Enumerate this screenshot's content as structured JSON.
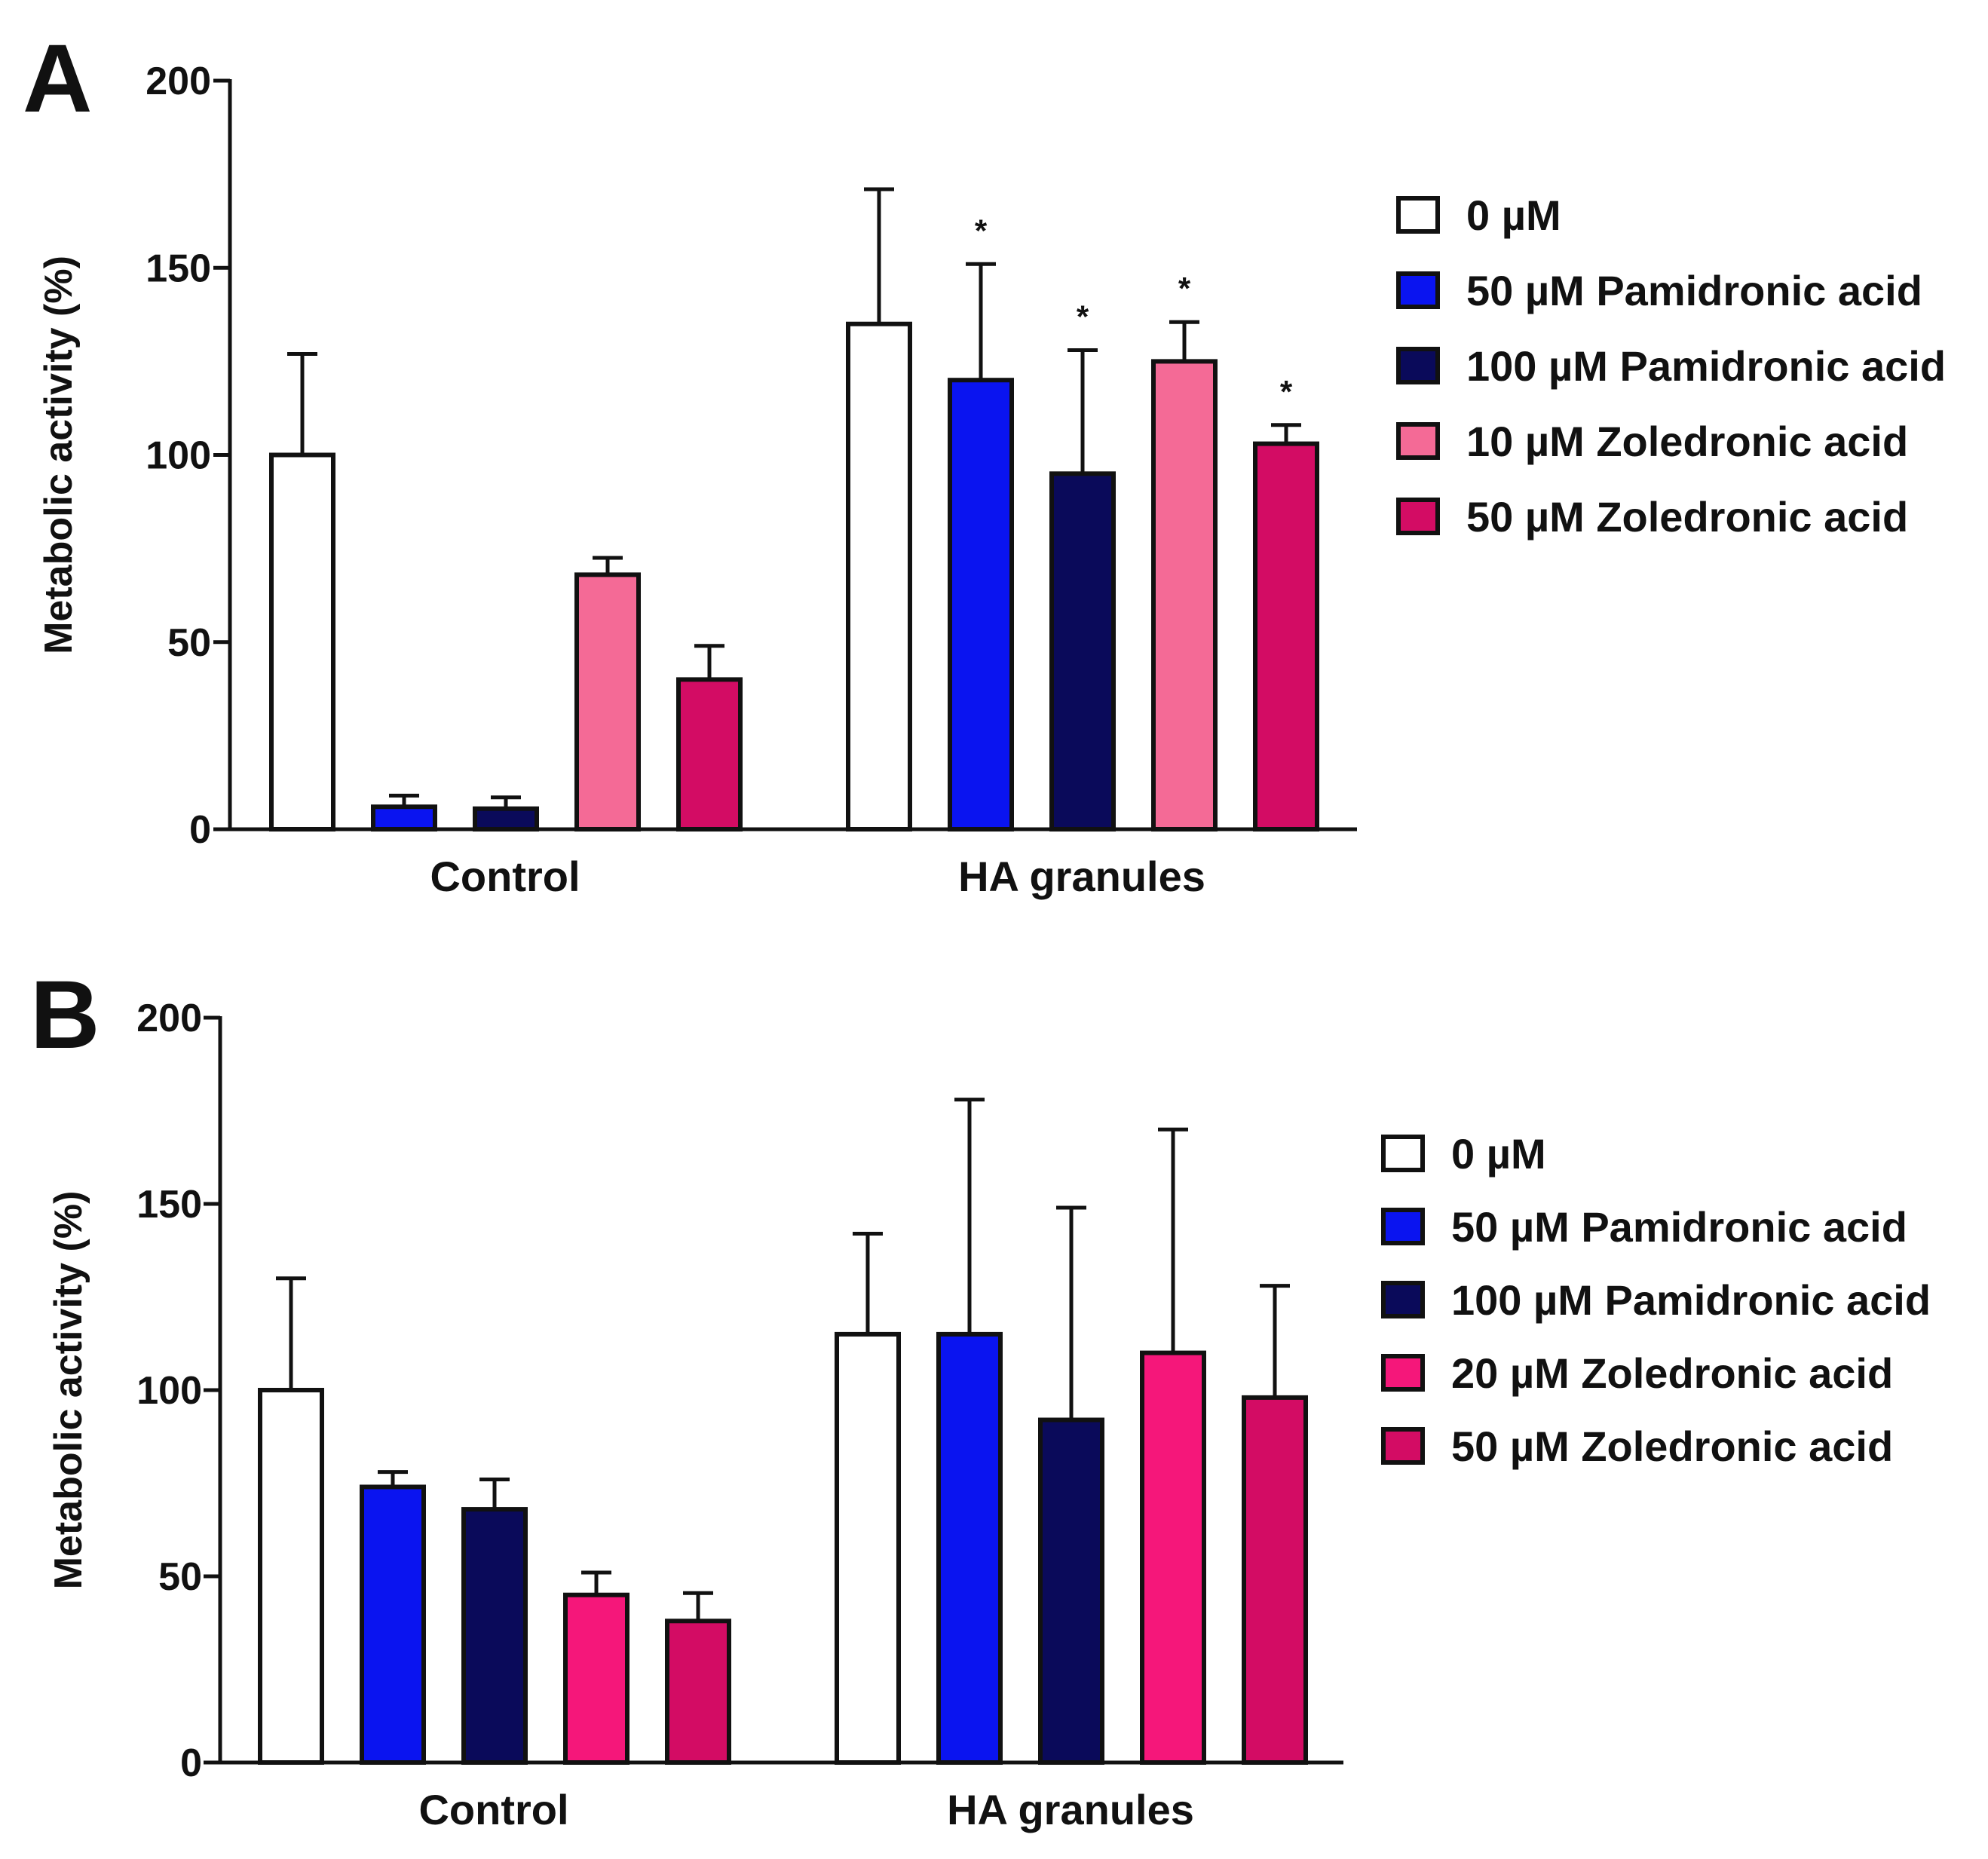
{
  "chart_data": [
    {
      "panel": "A",
      "type": "bar",
      "ylabel": "Metabolic activity (%)",
      "ylim": [
        0,
        200
      ],
      "yticks": [
        0,
        50,
        100,
        150,
        200
      ],
      "categories": [
        "Control",
        "HA granules"
      ],
      "series": [
        {
          "name": "0 µM",
          "color": "#ffffff",
          "values": [
            100,
            135
          ],
          "errors": [
            27,
            36
          ],
          "significance": [
            "",
            ""
          ]
        },
        {
          "name": "50 µM Pamidronic acid",
          "color": "#0a14f0",
          "values": [
            6,
            120
          ],
          "errors": [
            3,
            31
          ],
          "significance": [
            "",
            "*"
          ]
        },
        {
          "name": "100 µM Pamidronic acid",
          "color": "#0a0a5a",
          "values": [
            5.5,
            95
          ],
          "errors": [
            3,
            33
          ],
          "significance": [
            "",
            "*"
          ]
        },
        {
          "name": "10 µM Zoledronic acid",
          "color": "#f46a96",
          "values": [
            68,
            125
          ],
          "errors": [
            4.5,
            10.5
          ],
          "significance": [
            "",
            "*"
          ]
        },
        {
          "name": "50 µM Zoledronic acid",
          "color": "#d30c64",
          "values": [
            40,
            103
          ],
          "errors": [
            9,
            5
          ],
          "significance": [
            "",
            "*"
          ]
        }
      ]
    },
    {
      "panel": "B",
      "type": "bar",
      "ylabel": "Metabolic activity (%)",
      "ylim": [
        0,
        200
      ],
      "yticks": [
        0,
        50,
        100,
        150,
        200
      ],
      "categories": [
        "Control",
        "HA granules"
      ],
      "series": [
        {
          "name": "0 µM",
          "color": "#ffffff",
          "values": [
            100,
            115
          ],
          "errors": [
            30,
            27
          ],
          "significance": [
            "",
            ""
          ]
        },
        {
          "name": "50 µM Pamidronic acid",
          "color": "#0a14f0",
          "values": [
            74,
            115
          ],
          "errors": [
            4,
            63
          ],
          "significance": [
            "",
            ""
          ]
        },
        {
          "name": "100 µM Pamidronic acid",
          "color": "#0a0a5a",
          "values": [
            68,
            92
          ],
          "errors": [
            8,
            57
          ],
          "significance": [
            "",
            ""
          ]
        },
        {
          "name": "20 µM Zoledronic acid",
          "color": "#f5177a",
          "values": [
            45,
            110
          ],
          "errors": [
            6,
            60
          ],
          "significance": [
            "",
            ""
          ]
        },
        {
          "name": "50 µM Zoledronic acid",
          "color": "#d30c64",
          "values": [
            38,
            98
          ],
          "errors": [
            7.5,
            30
          ],
          "significance": [
            "",
            ""
          ]
        }
      ]
    }
  ]
}
